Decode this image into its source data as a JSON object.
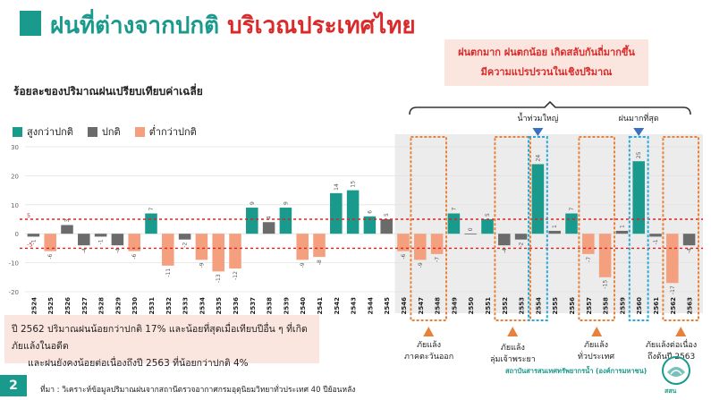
{
  "header": {
    "title_part1": "ฝนที่ต่างจากปกติ",
    "title_part2": "บริเวณประเทศไทย"
  },
  "callout": {
    "line1": "ฝนตกมาก ฝนตกน้อย เกิดสลับกันถี่มากขึ้น",
    "line2": "มีความแปรปรวนในเชิงปริมาณ"
  },
  "subtitle": "ร้อยละของปริมาณฝนเปรียบเทียบค่าเฉลี่ย",
  "legend": [
    {
      "label": "สูงกว่าปกติ",
      "color": "#1a9a8c"
    },
    {
      "label": "ปกติ",
      "color": "#6b6b6b"
    },
    {
      "label": "ต่ำกว่าปกติ",
      "color": "#f4a07f"
    }
  ],
  "annotations": {
    "flood_big": "น้ำท่วมใหญ่",
    "most_rain": "ฝนมากที่สุด",
    "drought_east": [
      "ภัยแล้ง",
      "ภาคตะวันออก"
    ],
    "drought_chao_phraya": [
      "ภัยแล้ง",
      "ลุ่มเจ้าพระยา"
    ],
    "drought_nationwide": [
      "ภัยแล้ง",
      "ทั่วประเทศ"
    ],
    "drought_continuous": [
      "ภัยแล้งต่อเนื่อง",
      "ถึงต้นปี 2563"
    ]
  },
  "note": {
    "line1": "ปี 2562 ปริมาณฝนน้อยกว่าปกติ 17% และน้อยที่สุดเมื่อเทียบปีอื่น ๆ ที่เกิดภัยแล้งในอดีต",
    "line2": "และฝนยังคงน้อยต่อเนื่องถึงปี 2563 ที่น้อยกว่าปกติ 4%"
  },
  "footer": {
    "page": "2",
    "source": "ที่มา : วิเคราะห์ข้อมูลปริมาณฝนจากสถานีตรวจอากาศกรมอุตุนิยมวิทยาทั่วประเทศ 40 ปีย้อนหลัง",
    "org_label": "สถาบันสารสนเทศทรัพยากรน้ำ (องค์การมหาชน)",
    "logo_text": "สสน"
  },
  "colors": {
    "above": "#1a9a8c",
    "normal": "#6b6b6b",
    "below": "#f4a07f",
    "threshold": "#e02020",
    "highlight_orange": "#e8823a",
    "highlight_blue": "#2aa8d8",
    "arrow_blue": "#3a6fc4"
  },
  "chart_data": {
    "type": "bar",
    "categories": [
      "2524",
      "2525",
      "2526",
      "2527",
      "2528",
      "2529",
      "2530",
      "2531",
      "2532",
      "2533",
      "2534",
      "2535",
      "2536",
      "2537",
      "2538",
      "2539",
      "2540",
      "2541",
      "2542",
      "2543",
      "2544",
      "2545",
      "2546",
      "2547",
      "2548",
      "2549",
      "2550",
      "2551",
      "2552",
      "2553",
      "2554",
      "2555",
      "2556",
      "2557",
      "2558",
      "2559",
      "2560",
      "2561",
      "2562",
      "2563"
    ],
    "values": [
      -1,
      -6,
      3,
      -4,
      -1,
      -4,
      -6,
      7,
      -11,
      -2,
      -9,
      -13,
      -12,
      9,
      4,
      9,
      -9,
      -8,
      14,
      15,
      6,
      5,
      -6,
      -9,
      -7,
      7,
      0,
      5,
      -4,
      -2,
      24,
      1,
      7,
      -7,
      -15,
      1,
      25,
      -1,
      -17,
      -4
    ],
    "value_labels": [
      "-1",
      "-6",
      "3",
      "-4",
      "-1",
      "-4",
      "-6",
      "7",
      "-11",
      "-2",
      "-9",
      "-13",
      "-12",
      "9",
      "4",
      "9",
      "-9",
      "-8",
      "14",
      "15",
      "6",
      "5",
      "-6",
      "-9",
      "-7",
      "7",
      "0",
      "5",
      "-4",
      "-2",
      "24",
      "1",
      "7",
      "-7",
      "-15",
      "1",
      "25",
      "-1",
      "-17",
      "-4"
    ],
    "classes": [
      "normal",
      "below",
      "normal",
      "normal",
      "normal",
      "normal",
      "below",
      "above",
      "below",
      "normal",
      "below",
      "below",
      "below",
      "above",
      "normal",
      "above",
      "below",
      "below",
      "above",
      "above",
      "above",
      "normal",
      "below",
      "below",
      "below",
      "above",
      "normal",
      "above",
      "normal",
      "normal",
      "above",
      "normal",
      "above",
      "below",
      "below",
      "normal",
      "above",
      "normal",
      "below",
      "normal"
    ],
    "yticks": [
      "30",
      "20",
      "10",
      "0",
      "-10",
      "-20"
    ],
    "ylim": [
      -20,
      30
    ],
    "thresholds": [
      5,
      -5
    ],
    "threshold_labels": [
      "5",
      "-5"
    ],
    "grid": true,
    "title": "ร้อยละของปริมาณฝนเปรียบเทียบค่าเฉลี่ย"
  }
}
